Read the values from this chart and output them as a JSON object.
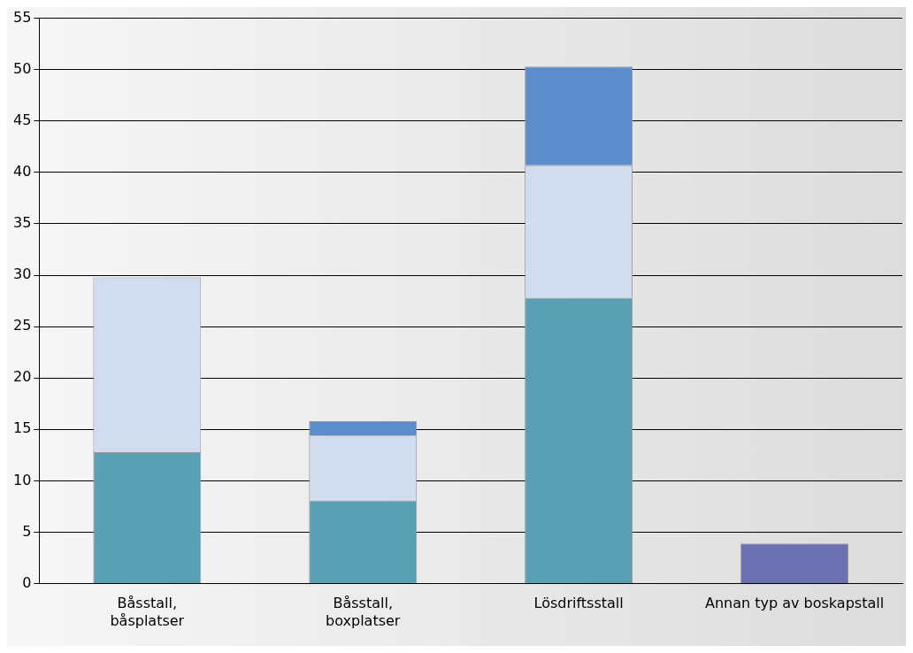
{
  "chart_data": {
    "type": "bar",
    "stacked": true,
    "categories": [
      "Båsstall, båsplatser",
      "Båsstall, boxplatser",
      "Lösdriftsstall",
      "Annan typ av boskapstall"
    ],
    "series": [
      {
        "color": "#5aa0b5",
        "values": [
          12.8,
          8.1,
          27.8,
          null
        ]
      },
      {
        "color": "#d1dcee",
        "values": [
          17.0,
          6.3,
          12.9,
          null
        ]
      },
      {
        "color": "#5b8ccb",
        "values": [
          null,
          1.4,
          9.6,
          null
        ]
      },
      {
        "color": "#6b70b0",
        "values": [
          null,
          null,
          null,
          3.9
        ]
      }
    ],
    "ylim": [
      0,
      55
    ],
    "yticks": [
      0,
      5,
      10,
      15,
      20,
      25,
      30,
      35,
      40,
      45,
      50,
      55
    ],
    "grid": "y",
    "legend": false
  }
}
